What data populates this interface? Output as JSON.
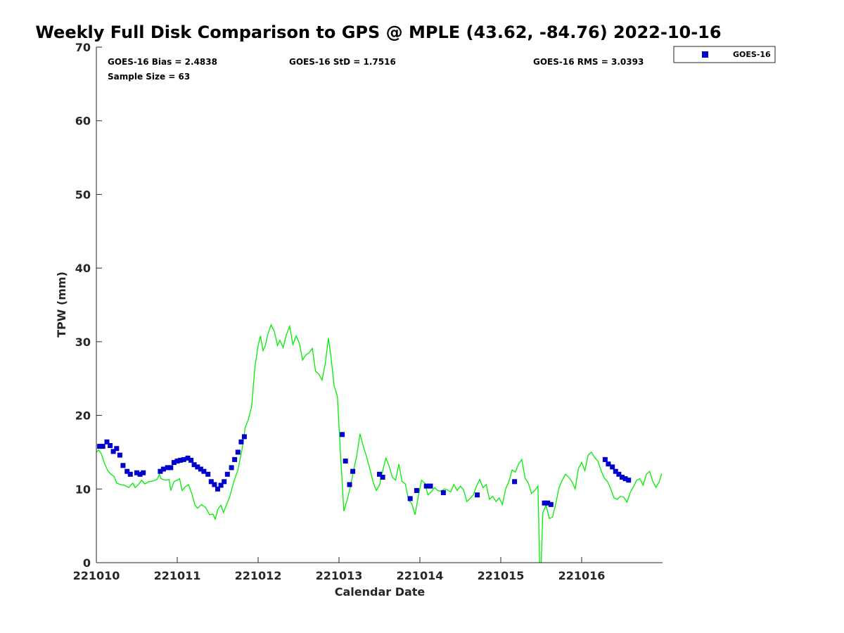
{
  "chart_data": {
    "type": "scatter",
    "title": "Weekly Full Disk Comparison to GPS @ MPLE (43.62, -84.76) 2022-10-16",
    "xlabel": "Calendar Date",
    "ylabel": "TPW (mm)",
    "xlim": [
      221010,
      221017
    ],
    "ylim": [
      0,
      70
    ],
    "x_ticks": [
      {
        "value": 221010,
        "label": "221010"
      },
      {
        "value": 221011,
        "label": "221011"
      },
      {
        "value": 221012,
        "label": "221012"
      },
      {
        "value": 221013,
        "label": "221013"
      },
      {
        "value": 221014,
        "label": "221014"
      },
      {
        "value": 221015,
        "label": "221015"
      },
      {
        "value": 221016,
        "label": "221016"
      }
    ],
    "y_ticks": [
      {
        "value": 0,
        "label": "0"
      },
      {
        "value": 10,
        "label": "10"
      },
      {
        "value": 20,
        "label": "20"
      },
      {
        "value": 30,
        "label": "30"
      },
      {
        "value": 40,
        "label": "40"
      },
      {
        "value": 50,
        "label": "50"
      },
      {
        "value": 60,
        "label": "60"
      },
      {
        "value": 70,
        "label": "70"
      }
    ],
    "grid": false,
    "legend": {
      "position": "top-right",
      "entries": [
        {
          "label": "GOES-16",
          "color": "#0000cc",
          "marker": "square"
        }
      ]
    },
    "stats": {
      "bias": "GOES-16 Bias = 2.4838",
      "std": "GOES-16 StD = 1.7516",
      "rms": "GOES-16 RMS = 3.0393",
      "sample": "Sample Size = 63"
    },
    "series": [
      {
        "type": "scatter",
        "color": "#0000cc",
        "points": [
          [
            221010.04,
            15.8
          ],
          [
            221010.08,
            15.8
          ],
          [
            221010.13,
            16.4
          ],
          [
            221010.17,
            15.9
          ],
          [
            221010.21,
            15.1
          ],
          [
            221010.25,
            15.5
          ],
          [
            221010.29,
            14.6
          ],
          [
            221010.33,
            13.2
          ],
          [
            221010.38,
            12.4
          ],
          [
            221010.42,
            12.0
          ],
          [
            221010.5,
            12.2
          ],
          [
            221010.54,
            12.0
          ],
          [
            221010.58,
            12.2
          ],
          [
            221010.79,
            12.4
          ],
          [
            221010.83,
            12.7
          ],
          [
            221010.88,
            12.9
          ],
          [
            221010.92,
            12.9
          ],
          [
            221010.96,
            13.6
          ],
          [
            221011.0,
            13.8
          ],
          [
            221011.04,
            13.9
          ],
          [
            221011.08,
            14.0
          ],
          [
            221011.13,
            14.2
          ],
          [
            221011.17,
            13.9
          ],
          [
            221011.21,
            13.3
          ],
          [
            221011.25,
            13.0
          ],
          [
            221011.29,
            12.7
          ],
          [
            221011.33,
            12.4
          ],
          [
            221011.38,
            12.0
          ],
          [
            221011.42,
            11.0
          ],
          [
            221011.46,
            10.6
          ],
          [
            221011.5,
            10.0
          ],
          [
            221011.54,
            10.5
          ],
          [
            221011.58,
            11.0
          ],
          [
            221011.62,
            12.0
          ],
          [
            221011.67,
            12.9
          ],
          [
            221011.71,
            14.0
          ],
          [
            221011.75,
            15.0
          ],
          [
            221011.79,
            16.4
          ],
          [
            221011.83,
            17.1
          ],
          [
            221013.04,
            17.4
          ],
          [
            221013.08,
            13.8
          ],
          [
            221013.13,
            10.6
          ],
          [
            221013.17,
            12.4
          ],
          [
            221013.5,
            12.0
          ],
          [
            221013.54,
            11.6
          ],
          [
            221013.88,
            8.7
          ],
          [
            221013.96,
            9.8
          ],
          [
            221014.08,
            10.4
          ],
          [
            221014.13,
            10.4
          ],
          [
            221014.29,
            9.5
          ],
          [
            221014.71,
            9.2
          ],
          [
            221015.17,
            11.0
          ],
          [
            221015.54,
            8.1
          ],
          [
            221015.58,
            8.1
          ],
          [
            221015.62,
            7.9
          ],
          [
            221016.29,
            14.0
          ],
          [
            221016.33,
            13.4
          ],
          [
            221016.38,
            13.0
          ],
          [
            221016.42,
            12.4
          ],
          [
            221016.46,
            12.0
          ],
          [
            221016.5,
            11.6
          ],
          [
            221016.54,
            11.4
          ],
          [
            221016.58,
            11.2
          ]
        ]
      },
      {
        "type": "line",
        "color": "#00ee00",
        "points": [
          [
            221010.0,
            15.0
          ],
          [
            221010.03,
            15.3
          ],
          [
            221010.06,
            14.8
          ],
          [
            221010.1,
            13.5
          ],
          [
            221010.14,
            12.5
          ],
          [
            221010.18,
            12.0
          ],
          [
            221010.22,
            11.7
          ],
          [
            221010.25,
            10.8
          ],
          [
            221010.3,
            10.6
          ],
          [
            221010.35,
            10.5
          ],
          [
            221010.4,
            10.2
          ],
          [
            221010.45,
            10.8
          ],
          [
            221010.48,
            10.2
          ],
          [
            221010.52,
            10.6
          ],
          [
            221010.56,
            11.2
          ],
          [
            221010.6,
            10.7
          ],
          [
            221010.65,
            11.0
          ],
          [
            221010.7,
            11.1
          ],
          [
            221010.75,
            11.3
          ],
          [
            221010.78,
            12.0
          ],
          [
            221010.8,
            11.4
          ],
          [
            221010.85,
            11.2
          ],
          [
            221010.9,
            11.3
          ],
          [
            221010.92,
            9.8
          ],
          [
            221010.96,
            11.0
          ],
          [
            221011.0,
            11.2
          ],
          [
            221011.03,
            11.4
          ],
          [
            221011.06,
            9.8
          ],
          [
            221011.1,
            10.3
          ],
          [
            221011.14,
            10.6
          ],
          [
            221011.18,
            9.4
          ],
          [
            221011.22,
            7.8
          ],
          [
            221011.25,
            7.4
          ],
          [
            221011.3,
            7.9
          ],
          [
            221011.35,
            7.5
          ],
          [
            221011.4,
            6.5
          ],
          [
            221011.44,
            6.6
          ],
          [
            221011.47,
            5.9
          ],
          [
            221011.5,
            7.2
          ],
          [
            221011.54,
            7.8
          ],
          [
            221011.57,
            6.8
          ],
          [
            221011.6,
            7.6
          ],
          [
            221011.65,
            9.0
          ],
          [
            221011.7,
            11.0
          ],
          [
            221011.75,
            12.6
          ],
          [
            221011.8,
            15.3
          ],
          [
            221011.84,
            18.3
          ],
          [
            221011.88,
            19.5
          ],
          [
            221011.92,
            21.2
          ],
          [
            221011.96,
            26.5
          ],
          [
            221012.0,
            29.5
          ],
          [
            221012.03,
            30.8
          ],
          [
            221012.06,
            28.8
          ],
          [
            221012.09,
            29.5
          ],
          [
            221012.12,
            31.0
          ],
          [
            221012.16,
            32.3
          ],
          [
            221012.2,
            31.4
          ],
          [
            221012.24,
            29.5
          ],
          [
            221012.27,
            30.2
          ],
          [
            221012.31,
            29.2
          ],
          [
            221012.35,
            31.0
          ],
          [
            221012.39,
            32.1
          ],
          [
            221012.43,
            29.6
          ],
          [
            221012.47,
            30.8
          ],
          [
            221012.51,
            29.8
          ],
          [
            221012.55,
            27.5
          ],
          [
            221012.59,
            28.2
          ],
          [
            221012.63,
            28.5
          ],
          [
            221012.67,
            29.1
          ],
          [
            221012.71,
            26.0
          ],
          [
            221012.75,
            25.6
          ],
          [
            221012.79,
            24.8
          ],
          [
            221012.83,
            27.0
          ],
          [
            221012.87,
            30.5
          ],
          [
            221012.9,
            28.0
          ],
          [
            221012.94,
            24.0
          ],
          [
            221012.98,
            22.6
          ],
          [
            221013.02,
            14.5
          ],
          [
            221013.06,
            7.0
          ],
          [
            221013.1,
            8.5
          ],
          [
            221013.14,
            10.3
          ],
          [
            221013.18,
            12.5
          ],
          [
            221013.22,
            14.6
          ],
          [
            221013.26,
            17.5
          ],
          [
            221013.3,
            15.8
          ],
          [
            221013.34,
            14.4
          ],
          [
            221013.38,
            12.8
          ],
          [
            221013.42,
            11.0
          ],
          [
            221013.46,
            9.8
          ],
          [
            221013.5,
            10.5
          ],
          [
            221013.54,
            12.5
          ],
          [
            221013.58,
            14.2
          ],
          [
            221013.62,
            13.1
          ],
          [
            221013.66,
            11.6
          ],
          [
            221013.7,
            11.2
          ],
          [
            221013.74,
            13.4
          ],
          [
            221013.78,
            11.0
          ],
          [
            221013.82,
            10.7
          ],
          [
            221013.86,
            8.5
          ],
          [
            221013.9,
            8.0
          ],
          [
            221013.94,
            6.5
          ],
          [
            221013.98,
            9.0
          ],
          [
            221014.02,
            11.2
          ],
          [
            221014.06,
            10.8
          ],
          [
            221014.1,
            9.2
          ],
          [
            221014.14,
            9.6
          ],
          [
            221014.18,
            10.2
          ],
          [
            221014.22,
            9.8
          ],
          [
            221014.26,
            9.7
          ],
          [
            221014.3,
            10.0
          ],
          [
            221014.34,
            9.9
          ],
          [
            221014.38,
            9.6
          ],
          [
            221014.42,
            10.6
          ],
          [
            221014.46,
            9.8
          ],
          [
            221014.5,
            10.4
          ],
          [
            221014.54,
            9.9
          ],
          [
            221014.58,
            8.3
          ],
          [
            221014.62,
            8.7
          ],
          [
            221014.66,
            9.2
          ],
          [
            221014.7,
            10.4
          ],
          [
            221014.74,
            11.3
          ],
          [
            221014.78,
            10.2
          ],
          [
            221014.82,
            10.6
          ],
          [
            221014.86,
            8.6
          ],
          [
            221014.9,
            9.0
          ],
          [
            221014.94,
            8.3
          ],
          [
            221014.98,
            8.8
          ],
          [
            221015.02,
            7.9
          ],
          [
            221015.06,
            10.0
          ],
          [
            221015.1,
            11.0
          ],
          [
            221015.14,
            12.6
          ],
          [
            221015.18,
            12.3
          ],
          [
            221015.22,
            13.4
          ],
          [
            221015.26,
            14.0
          ],
          [
            221015.3,
            11.5
          ],
          [
            221015.34,
            10.8
          ],
          [
            221015.38,
            9.4
          ],
          [
            221015.42,
            9.8
          ],
          [
            221015.46,
            10.4
          ],
          [
            221015.48,
            0.0
          ],
          [
            221015.5,
            0.0
          ],
          [
            221015.52,
            6.8
          ],
          [
            221015.56,
            7.8
          ],
          [
            221015.6,
            6.0
          ],
          [
            221015.64,
            6.2
          ],
          [
            221015.68,
            8.0
          ],
          [
            221015.72,
            10.2
          ],
          [
            221015.76,
            11.2
          ],
          [
            221015.8,
            12.0
          ],
          [
            221015.84,
            11.6
          ],
          [
            221015.88,
            11.0
          ],
          [
            221015.92,
            10.0
          ],
          [
            221015.96,
            12.8
          ],
          [
            221016.0,
            13.6
          ],
          [
            221016.04,
            12.5
          ],
          [
            221016.08,
            14.6
          ],
          [
            221016.12,
            15.0
          ],
          [
            221016.16,
            14.3
          ],
          [
            221016.2,
            13.8
          ],
          [
            221016.24,
            12.5
          ],
          [
            221016.28,
            11.5
          ],
          [
            221016.32,
            11.0
          ],
          [
            221016.36,
            10.0
          ],
          [
            221016.4,
            8.8
          ],
          [
            221016.44,
            8.6
          ],
          [
            221016.48,
            9.0
          ],
          [
            221016.52,
            8.9
          ],
          [
            221016.56,
            8.2
          ],
          [
            221016.6,
            9.5
          ],
          [
            221016.64,
            10.3
          ],
          [
            221016.68,
            11.2
          ],
          [
            221016.72,
            11.4
          ],
          [
            221016.76,
            10.5
          ],
          [
            221016.8,
            12.0
          ],
          [
            221016.84,
            12.4
          ],
          [
            221016.88,
            11.0
          ],
          [
            221016.92,
            10.2
          ],
          [
            221016.96,
            11.0
          ],
          [
            221016.99,
            12.1
          ]
        ]
      }
    ]
  }
}
